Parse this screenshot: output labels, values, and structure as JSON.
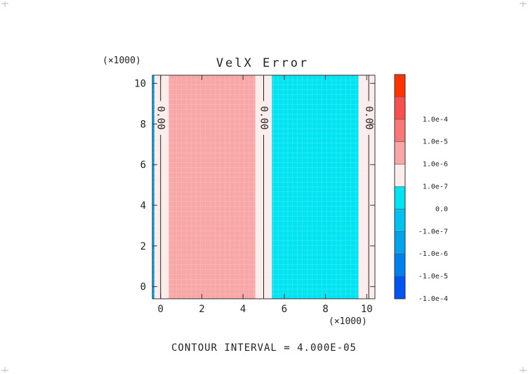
{
  "chart_data": {
    "type": "heatmap",
    "title": "VelX Error",
    "x_multiplier": "(×1000)",
    "y_multiplier": "(×1000)",
    "xlim": [
      -0.4,
      10.4
    ],
    "ylim": [
      -0.6,
      10.4
    ],
    "x_ticks": [
      0,
      2,
      4,
      6,
      8,
      10
    ],
    "y_ticks": [
      0,
      2,
      4,
      6,
      8,
      10
    ],
    "x_tick_labels": [
      "0",
      "2",
      "4",
      "6",
      "8",
      "10"
    ],
    "y_tick_labels": [
      "0",
      "2",
      "4",
      "6",
      "8",
      "10"
    ],
    "bands": [
      {
        "x0": -0.4,
        "x1": -0.3,
        "level": -3
      },
      {
        "x0": -0.3,
        "x1": 0.4,
        "level": 0
      },
      {
        "x0": 0.4,
        "x1": 4.6,
        "level": 1
      },
      {
        "x0": 4.6,
        "x1": 5.4,
        "level": 0
      },
      {
        "x0": 5.4,
        "x1": 9.6,
        "level": -1
      },
      {
        "x0": 9.6,
        "x1": 10.4,
        "level": 0
      }
    ],
    "contours": [
      {
        "x": 0.0,
        "label": "0.00",
        "y": 8.3
      },
      {
        "x": 5.0,
        "label": "0.00",
        "y": 8.3
      },
      {
        "x": 10.1,
        "label": "0.00",
        "y": 8.3
      }
    ],
    "colorbar": {
      "levels": [
        {
          "level": 4,
          "color": "#ff3300",
          "label": ""
        },
        {
          "level": 3,
          "color": "#f85050",
          "label": "1.0e-4"
        },
        {
          "level": 2,
          "color": "#f87878",
          "label": "1.0e-5"
        },
        {
          "level": 1,
          "color": "#f8a6a6",
          "label": "1.0e-6"
        },
        {
          "level": 0,
          "color": "#fcecec",
          "label": "1.0e-7"
        },
        {
          "level": -1,
          "color": "#00e4f2",
          "label": "0.0"
        },
        {
          "level": -2,
          "color": "#00c2ee",
          "label": "-1.0e-7"
        },
        {
          "level": -3,
          "color": "#00a4ec",
          "label": "-1.0e-6"
        },
        {
          "level": -4,
          "color": "#0080ee",
          "label": "-1.0e-5"
        },
        {
          "level": -5,
          "color": "#0055f2",
          "label": "-1.0e-4"
        }
      ]
    },
    "footer": "CONTOUR INTERVAL = 4.000E-05"
  }
}
